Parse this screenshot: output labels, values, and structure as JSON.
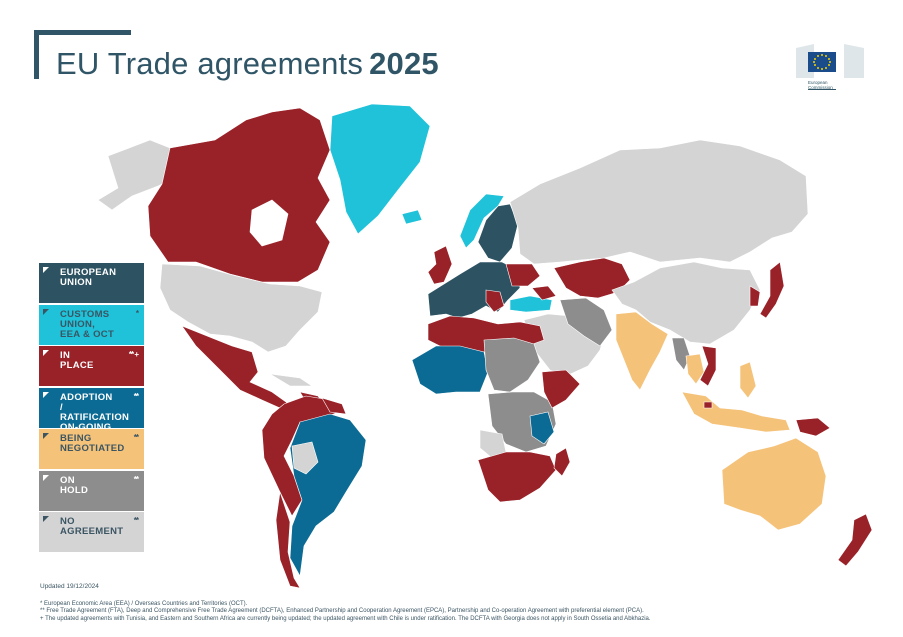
{
  "header": {
    "title": "EU Trade agreements",
    "year": "2025"
  },
  "logo": {
    "line1": "European",
    "line2": "Commission"
  },
  "colors": {
    "european_union": "#2d5363",
    "customs_union": "#1fc2d8",
    "in_place": "#992128",
    "adoption": "#0c6b94",
    "negotiated": "#f5c27a",
    "on_hold": "#8d8d8d",
    "no_agreement": "#d4d4d4",
    "sea": "#ffffff"
  },
  "legend": [
    {
      "key": "european_union",
      "label": "EUROPEAN\nUNION",
      "mark": "",
      "style": "dark"
    },
    {
      "key": "customs_union",
      "label": "CUSTOMS\nUNION,\nEEA & OCT",
      "mark": "*",
      "style": "light"
    },
    {
      "key": "in_place",
      "label": "IN\nPLACE",
      "mark": "** +",
      "style": "dark"
    },
    {
      "key": "adoption",
      "label": "ADOPTION\n/ RATIFICATION\nON-GOING",
      "mark": "**",
      "style": "dark"
    },
    {
      "key": "negotiated",
      "label": "BEING\nNEGOTIATED",
      "mark": "**",
      "style": "light"
    },
    {
      "key": "on_hold",
      "label": "ON\nHOLD",
      "mark": "**",
      "style": "dark"
    },
    {
      "key": "no_agreement",
      "label": "NO\nAGREEMENT",
      "mark": "**",
      "style": "light"
    }
  ],
  "footer": {
    "updated": "Updated 19/12/2024",
    "note1": "* European Economic Area (EEA) / Overseas Countries and Territories (OCT).",
    "note2": "** Free Trade Agreement (FTA), Deep and Comprehensive Free Trade Agreement (DCFTA), Enhanced Partnership and Cooperation Agreement (EPCA), Partnership and Co-operation Agreement with preferential element (PCA).",
    "note3": "+ The updated agreements with Tunisia, and Eastern and Southern Africa are currently being updated; the updated agreement with Chile is under ratification. The DCFTA with Georgia does not apply in South Ossetia and Abkhazia."
  }
}
